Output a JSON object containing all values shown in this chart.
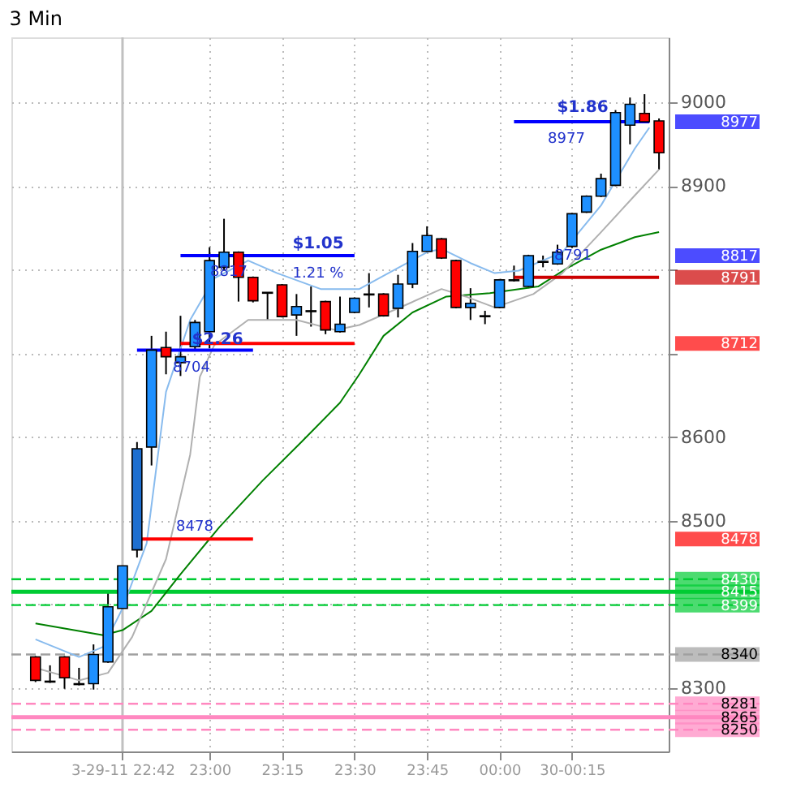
{
  "chart_data": {
    "type": "candlestick",
    "title": "3 Min",
    "x": [
      22.4,
      22.45,
      22.5,
      22.55,
      22.6,
      22.65,
      22.7,
      22.75,
      22.8,
      22.85,
      22.9,
      22.95,
      23.0,
      23.05,
      23.1,
      23.15,
      23.2,
      23.25,
      23.3,
      23.35,
      23.4,
      23.45,
      23.5,
      23.55,
      23.6,
      23.65,
      23.7,
      23.75,
      23.8,
      23.85,
      23.9,
      23.95,
      24.0,
      24.05,
      24.1,
      24.15,
      24.2,
      24.25,
      24.3,
      24.35,
      24.4,
      24.45,
      24.5,
      24.55
    ],
    "ohlc": [
      [
        8337,
        8338,
        8307,
        8309
      ],
      [
        8308,
        8327,
        8306,
        8307
      ],
      [
        8337,
        8338,
        8299,
        8312
      ],
      [
        8304,
        8324,
        8303,
        8305
      ],
      [
        8305,
        8352,
        8298,
        8340
      ],
      [
        8331,
        8414,
        8330,
        8397
      ],
      [
        8395,
        8448,
        8389,
        8446
      ],
      [
        8465,
        8594,
        8456,
        8586
      ],
      [
        8588,
        8721,
        8566,
        8704
      ],
      [
        8707,
        8726,
        8675,
        8696
      ],
      [
        8689,
        8745,
        8673,
        8696
      ],
      [
        8708,
        8740,
        8704,
        8737
      ],
      [
        8726,
        8827,
        8706,
        8811
      ],
      [
        8803,
        8861,
        8799,
        8821
      ],
      [
        8821,
        8822,
        8762,
        8791
      ],
      [
        8791,
        8792,
        8761,
        8763
      ],
      [
        8773,
        8773,
        8740,
        8772
      ],
      [
        8782,
        8783,
        8743,
        8744
      ],
      [
        8746,
        8771,
        8721,
        8756
      ],
      [
        8750,
        8780,
        8732,
        8751
      ],
      [
        8762,
        8763,
        8723,
        8728
      ],
      [
        8726,
        8768,
        8725,
        8735
      ],
      [
        8749,
        8767,
        8748,
        8766
      ],
      [
        8770,
        8796,
        8755,
        8771
      ],
      [
        8771,
        8772,
        8744,
        8745
      ],
      [
        8754,
        8794,
        8743,
        8783
      ],
      [
        8783,
        8832,
        8778,
        8822
      ],
      [
        8822,
        8852,
        8820,
        8841
      ],
      [
        8837,
        8838,
        8813,
        8814
      ],
      [
        8811,
        8812,
        8754,
        8755
      ],
      [
        8755,
        8778,
        8740,
        8760
      ],
      [
        8744,
        8751,
        8735,
        8745
      ],
      [
        8755,
        8789,
        8754,
        8788
      ],
      [
        8787,
        8805,
        8786,
        8788
      ],
      [
        8780,
        8818,
        8778,
        8817
      ],
      [
        8809,
        8817,
        8803,
        8810
      ],
      [
        8807,
        8830,
        8806,
        8821
      ],
      [
        8828,
        8868,
        8826,
        8867
      ],
      [
        8869,
        8889,
        8868,
        8888
      ],
      [
        8888,
        8915,
        8887,
        8909
      ],
      [
        8901,
        8991,
        8900,
        8988
      ],
      [
        8973,
        9006,
        8950,
        8998
      ],
      [
        8987,
        9010,
        8976,
        8977
      ],
      [
        8978,
        8981,
        8920,
        8940
      ]
    ],
    "colors": [
      "#ff0000",
      "#ff0000",
      "#ff0000",
      "#1e90ff",
      "#1e90ff",
      "#1e90ff",
      "#1e90ff",
      "#1e6fd0",
      "#1e90ff",
      "#ff0000",
      "#1e90ff",
      "#1e90ff",
      "#1e90ff",
      "#1e90ff",
      "#ff0000",
      "#ff0000",
      "#ff0000",
      "#ff0000",
      "#1e90ff",
      "#1e90ff",
      "#ff0000",
      "#1e90ff",
      "#1e90ff",
      "#1e90ff",
      "#ff0000",
      "#1e90ff",
      "#1e90ff",
      "#1e90ff",
      "#ff0000",
      "#ff0000",
      "#1e90ff",
      "#1e90ff",
      "#1e90ff",
      "#1e90ff",
      "#1e90ff",
      "#1e90ff",
      "#1e90ff",
      "#1e90ff",
      "#1e90ff",
      "#1e90ff",
      "#1e90ff",
      "#1e90ff",
      "#ff0000",
      "#ff0000"
    ],
    "xlim": [
      22.3167,
      24.5833
    ],
    "xticks": [
      {
        "value": 22.7,
        "label": "3-29-11 22:42"
      },
      {
        "value": 23,
        "label": "23:00"
      },
      {
        "value": 23.25,
        "label": "23:15"
      },
      {
        "value": 23.5,
        "label": "23:30"
      },
      {
        "value": 23.75,
        "label": "23:45"
      },
      {
        "value": 24,
        "label": "00:00"
      },
      {
        "value": 24.25,
        "label": "30-00:15"
      }
    ],
    "ylim": [
      8224,
      9078
    ],
    "yticks": [
      8300,
      {
        "value": 8400,
        "label": null
      },
      8500,
      8600,
      {
        "value": 8700,
        "label": null
      },
      {
        "value": 8800,
        "label": null
      },
      8900,
      9000
    ],
    "grid": true,
    "series": [
      {
        "type": "line",
        "color": "#008000",
        "x": [
          22.4,
          22.6333,
          22.7,
          22.8,
          22.9,
          23.0333,
          23.1833,
          23.3167,
          23.45,
          23.5167,
          23.6,
          23.7,
          23.8167,
          23.9667,
          24.1333,
          24.2333,
          24.35,
          24.4667,
          24.55
        ],
        "values": [
          8377,
          8363,
          8369,
          8392,
          8436,
          8492,
          8548,
          8594,
          8641,
          8675,
          8721,
          8749,
          8768,
          8772,
          8780,
          8802,
          8824,
          8839,
          8845
        ]
      },
      {
        "type": "line",
        "color": "#88bbee",
        "x": [
          22.4,
          22.55,
          22.6333,
          22.7,
          22.7833,
          22.85,
          22.9333,
          23.0167,
          23.1333,
          23.2333,
          23.3833,
          23.5167,
          23.6333,
          23.75,
          23.8,
          23.9,
          23.9833,
          24.0667,
          24.2167,
          24.35,
          24.4667,
          24.5167
        ],
        "values": [
          8358,
          8337,
          8349,
          8395,
          8473,
          8654,
          8740,
          8790,
          8811,
          8796,
          8777,
          8777,
          8799,
          8821,
          8825,
          8808,
          8796,
          8799,
          8821,
          8877,
          8945,
          8970
        ]
      },
      {
        "type": "line",
        "color": "#b0b0b0",
        "x": [
          22.4,
          22.55,
          22.65,
          22.7333,
          22.85,
          22.9333,
          22.9667,
          23.0167,
          23.1333,
          23.3,
          23.4333,
          23.5167,
          23.6833,
          23.8,
          23.8833,
          23.9833,
          24.1167,
          24.2167,
          24.35,
          24.4667,
          24.55
        ],
        "values": [
          8324,
          8309,
          8318,
          8361,
          8454,
          8579,
          8672,
          8710,
          8740,
          8740,
          8728,
          8734,
          8759,
          8777,
          8768,
          8755,
          8771,
          8796,
          8845,
          8889,
          8920
        ]
      },
      {
        "type": "line",
        "name": "8977",
        "color": "#0000ff",
        "x": [
          24.05,
          24.5167
        ],
        "values": [
          8977,
          8977
        ]
      },
      {
        "type": "line",
        "name": "8817",
        "color": "#0000ff",
        "x": [
          22.9,
          23.5
        ],
        "values": [
          8817,
          8817
        ]
      },
      {
        "type": "line",
        "name": "8791",
        "color": "#cc0000",
        "x": [
          24.05,
          24.55
        ],
        "values": [
          8791,
          8791
        ]
      },
      {
        "type": "line",
        "name": "8712",
        "color": "#ff0000",
        "x": [
          22.9,
          23.5
        ],
        "values": [
          8712,
          8712
        ]
      },
      {
        "type": "line",
        "color": "#0000ff",
        "x": [
          22.75,
          23.15
        ],
        "values": [
          8704,
          8704
        ]
      },
      {
        "type": "line",
        "name": "8478",
        "color": "#ff0000",
        "x": [
          22.75,
          23.15
        ],
        "values": [
          8478,
          8478
        ]
      }
    ],
    "ref_lines": [
      {
        "axis": "x",
        "value": 22.7,
        "color": "#c0c0c0",
        "line_style": "solid"
      },
      {
        "axis": "y",
        "value": 8430,
        "label": "8430",
        "color": "#00cc33",
        "line_style": "dashed"
      },
      {
        "axis": "y",
        "value": 8415,
        "label": "8415",
        "color": "#00cc33",
        "line_style": "solid"
      },
      {
        "axis": "y",
        "value": 8399,
        "label": "8399",
        "color": "#00cc33",
        "line_style": "dashed"
      },
      {
        "axis": "y",
        "value": 8340,
        "label": "8340",
        "color": "#a0a0a0",
        "line_style": "dashed"
      },
      {
        "axis": "y",
        "value": 8281,
        "label": "8281",
        "color": "#ff88c0",
        "line_style": "dashed"
      },
      {
        "axis": "y",
        "value": 8265,
        "label": "8265",
        "color": "#ff88c0",
        "line_style": "solid"
      },
      {
        "axis": "y",
        "value": 8250,
        "label": "8250",
        "color": "#ff88c0",
        "line_style": "dashed"
      }
    ],
    "annotations": [
      "$2.26",
      "8704",
      "$1.05",
      "1.21 %",
      "8817",
      "8478",
      "$1.86",
      "8977",
      "8791"
    ]
  }
}
